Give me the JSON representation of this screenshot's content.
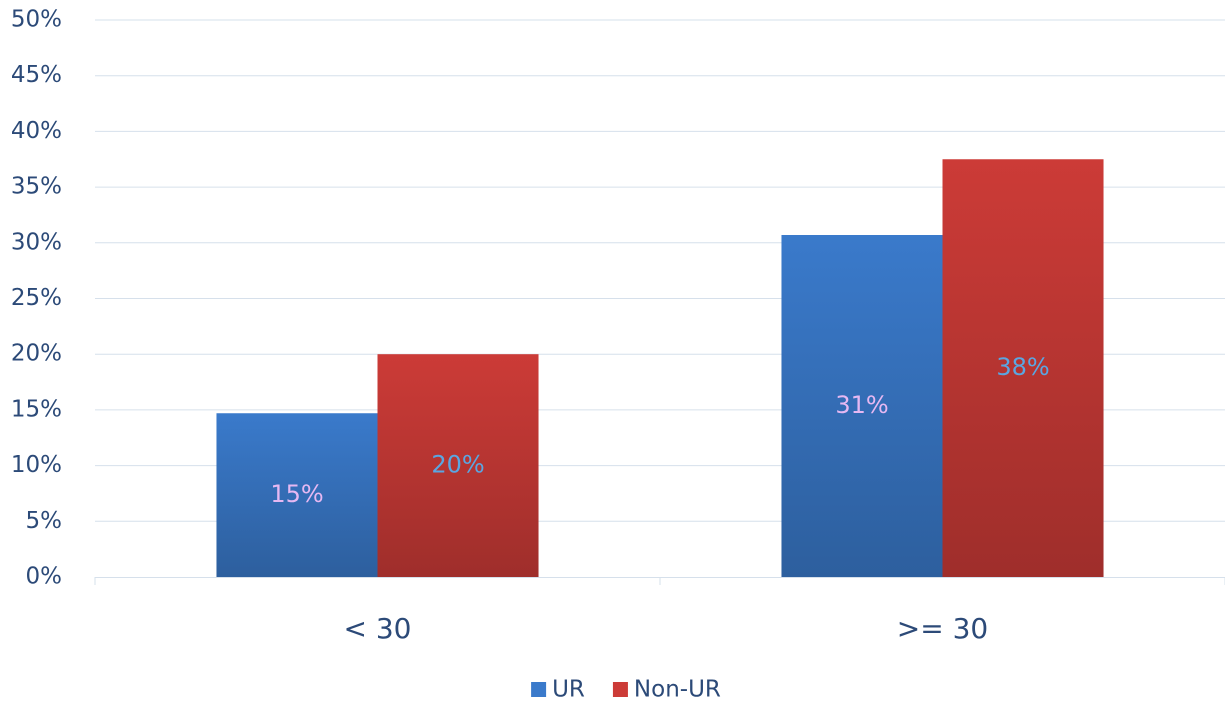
{
  "chart_data": {
    "type": "bar",
    "categories": [
      "< 30",
      ">= 30"
    ],
    "series": [
      {
        "name": "UR",
        "color": "#3a7acb",
        "label_color": "#e6b8f2",
        "values": [
          14.7,
          30.7
        ],
        "value_labels": [
          "15%",
          "31%"
        ]
      },
      {
        "name": "Non-UR",
        "color": "#cc3b37",
        "label_color": "#5aa6e2",
        "values": [
          20,
          37.5
        ],
        "value_labels": [
          "20%",
          "38%"
        ]
      }
    ],
    "ylim": [
      0,
      50
    ],
    "yticks": [
      {
        "value": 0,
        "label": "0%"
      },
      {
        "value": 5,
        "label": "5%"
      },
      {
        "value": 10,
        "label": "10%"
      },
      {
        "value": 15,
        "label": "15%"
      },
      {
        "value": 20,
        "label": "20%"
      },
      {
        "value": 25,
        "label": "25%"
      },
      {
        "value": 30,
        "label": "30%"
      },
      {
        "value": 35,
        "label": "35%"
      },
      {
        "value": 40,
        "label": "40%"
      },
      {
        "value": 45,
        "label": "45%"
      },
      {
        "value": 50,
        "label": "50%"
      }
    ],
    "grid": true,
    "legend": "bottom"
  }
}
